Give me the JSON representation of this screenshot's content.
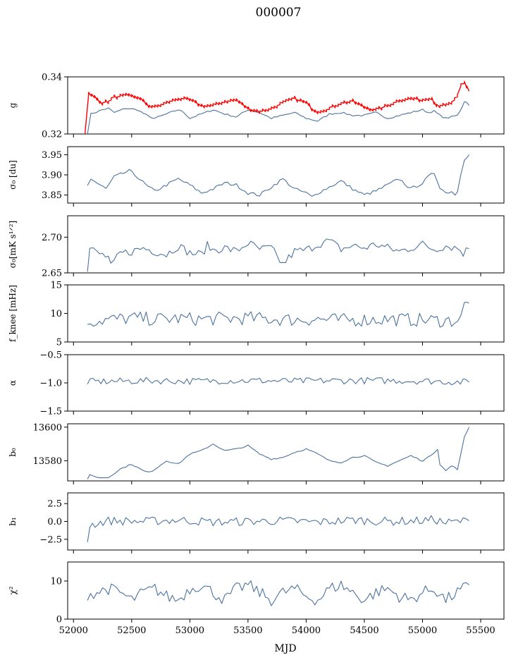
{
  "figure": {
    "suptitle": "000007",
    "xlabel": "MJD"
  },
  "colors": {
    "series": "#4c72a0",
    "highlight": "#ff0000"
  },
  "chart_data": [
    {
      "type": "line",
      "id": "g",
      "ylabel": "g",
      "ylim": [
        0.32,
        0.34
      ],
      "yticks": [
        0.32,
        0.34
      ],
      "ytick_labels": [
        "0.32",
        "0.34"
      ],
      "xlim": [
        51950,
        55700
      ],
      "xticks_shown": false,
      "series": [
        {
          "color": "#4c72a0",
          "desc": "lower curve",
          "x": [
            52120,
            52150,
            52250,
            52300,
            52350,
            52450,
            52550,
            52650,
            52700,
            52800,
            52900,
            52950,
            53000,
            53100,
            53200,
            53300,
            53400,
            53500,
            53600,
            53700,
            53800,
            53900,
            54000,
            54100,
            54200,
            54300,
            54350,
            54400,
            54500,
            54600,
            54700,
            54800,
            54900,
            55000,
            55050,
            55100,
            55150,
            55200,
            55300,
            55340,
            55360,
            55380,
            55400
          ],
          "y": [
            0.32,
            0.327,
            0.3285,
            0.329,
            0.3275,
            0.329,
            0.3285,
            0.326,
            0.3255,
            0.327,
            0.3285,
            0.3275,
            0.3255,
            0.327,
            0.3285,
            0.327,
            0.326,
            0.3285,
            0.3275,
            0.3255,
            0.3265,
            0.3275,
            0.3255,
            0.3245,
            0.327,
            0.3275,
            0.327,
            0.3265,
            0.3265,
            0.3275,
            0.3255,
            0.3265,
            0.3275,
            0.3285,
            0.3275,
            0.328,
            0.3265,
            0.3255,
            0.3265,
            0.3295,
            0.3315,
            0.331,
            0.33
          ]
        },
        {
          "color": "#ff0000",
          "desc": "upper band",
          "x": [
            52100,
            52130,
            52180,
            52250,
            52300,
            52350,
            52450,
            52550,
            52650,
            52700,
            52800,
            52900,
            53000,
            53100,
            53200,
            53300,
            53400,
            53500,
            53600,
            53700,
            53800,
            53900,
            54000,
            54050,
            54100,
            54200,
            54300,
            54400,
            54500,
            54600,
            54700,
            54800,
            54900,
            55000,
            55080,
            55100,
            55120,
            55150,
            55200,
            55250,
            55300,
            55330,
            55360,
            55380,
            55400
          ],
          "y": [
            0.32,
            0.3335,
            0.3325,
            0.3305,
            0.331,
            0.3325,
            0.333,
            0.3325,
            0.3295,
            0.329,
            0.3305,
            0.332,
            0.3315,
            0.3295,
            0.3295,
            0.331,
            0.3315,
            0.3285,
            0.3275,
            0.3285,
            0.3305,
            0.332,
            0.3305,
            0.3285,
            0.3275,
            0.3285,
            0.3305,
            0.331,
            0.329,
            0.328,
            0.3295,
            0.3315,
            0.332,
            0.3315,
            0.3325,
            0.3305,
            0.33,
            0.3295,
            0.3295,
            0.3305,
            0.3325,
            0.3365,
            0.3375,
            0.336,
            0.335
          ]
        }
      ]
    },
    {
      "type": "line",
      "id": "sigma0_du",
      "ylabel": "σ₀ [du]",
      "ylim": [
        3.83,
        3.97
      ],
      "yticks": [
        3.85,
        3.9,
        3.95
      ],
      "ytick_labels": [
        "3.85",
        "3.90",
        "3.95"
      ],
      "xlim": [
        51950,
        55700
      ],
      "xticks_shown": false,
      "series": [
        {
          "color": "#4c72a0",
          "x": [
            52120,
            52150,
            52200,
            52280,
            52350,
            52480,
            52550,
            52640,
            52700,
            52800,
            52900,
            53000,
            53100,
            53200,
            53300,
            53400,
            53500,
            53600,
            53700,
            53800,
            53900,
            54000,
            54050,
            54100,
            54200,
            54300,
            54400,
            54500,
            54600,
            54700,
            54800,
            54900,
            55000,
            55050,
            55100,
            55150,
            55200,
            55250,
            55280,
            55300,
            55330,
            55360,
            55400
          ],
          "y": [
            3.875,
            3.89,
            3.88,
            3.865,
            3.895,
            3.91,
            3.895,
            3.87,
            3.86,
            3.875,
            3.89,
            3.875,
            3.855,
            3.865,
            3.88,
            3.875,
            3.855,
            3.85,
            3.87,
            3.89,
            3.865,
            3.855,
            3.845,
            3.855,
            3.87,
            3.885,
            3.865,
            3.85,
            3.86,
            3.875,
            3.89,
            3.865,
            3.88,
            3.895,
            3.905,
            3.87,
            3.855,
            3.86,
            3.85,
            3.86,
            3.905,
            3.94,
            3.95
          ]
        }
      ]
    },
    {
      "type": "line",
      "id": "sigma0_mK",
      "ylabel": "σ₀[mK s¹ᐟ²]",
      "ylim": [
        2.65,
        2.73
      ],
      "yticks": [
        2.65,
        2.7
      ],
      "ytick_labels": [
        "2.65",
        "2.70"
      ],
      "xlim": [
        51950,
        55700
      ],
      "xticks_shown": false,
      "series": [
        {
          "color": "#4c72a0",
          "x": [
            52120,
            52140,
            52200,
            52250,
            52300,
            52320,
            52400,
            52500,
            52600,
            52700,
            52800,
            52900,
            53000,
            53100,
            53150,
            53200,
            53300,
            53400,
            53500,
            53600,
            53700,
            53750,
            53800,
            53900,
            54000,
            54100,
            54200,
            54300,
            54400,
            54500,
            54600,
            54700,
            54800,
            54900,
            55000,
            55100,
            55200,
            55300,
            55350,
            55400
          ],
          "y": [
            2.65,
            2.685,
            2.678,
            2.675,
            2.672,
            2.658,
            2.677,
            2.68,
            2.685,
            2.68,
            2.676,
            2.688,
            2.678,
            2.676,
            2.688,
            2.682,
            2.685,
            2.68,
            2.692,
            2.683,
            2.685,
            2.672,
            2.662,
            2.68,
            2.682,
            2.69,
            2.695,
            2.683,
            2.688,
            2.685,
            2.69,
            2.685,
            2.68,
            2.685,
            2.69,
            2.683,
            2.688,
            2.685,
            2.678,
            2.684
          ]
        }
      ]
    },
    {
      "type": "line",
      "id": "fknee",
      "ylabel": "f_knee [mHz]",
      "ylim": [
        5,
        15
      ],
      "yticks": [
        5,
        10,
        15
      ],
      "ytick_labels": [
        "5",
        "10",
        "15"
      ],
      "xlim": [
        51950,
        55700
      ],
      "xticks_shown": false,
      "series": [
        {
          "color": "#4c72a0",
          "x": [
            52120,
            52300,
            52500,
            52700,
            52900,
            53100,
            53300,
            53500,
            53700,
            53900,
            54100,
            54300,
            54500,
            54700,
            54900,
            55100,
            55250,
            55330,
            55360,
            55400
          ],
          "y": [
            8.6,
            8.9,
            9.2,
            9.0,
            9.1,
            9.0,
            9.1,
            9.2,
            9.0,
            8.9,
            9.0,
            8.8,
            8.9,
            9.0,
            8.9,
            8.8,
            8.7,
            9.0,
            11.5,
            11.8
          ]
        }
      ]
    },
    {
      "type": "line",
      "id": "alpha",
      "ylabel": "α",
      "ylim": [
        -1.5,
        -0.5
      ],
      "yticks": [
        -1.5,
        -1.0,
        -0.5
      ],
      "ytick_labels": [
        "−1.5",
        "−1.0",
        "−0.5"
      ],
      "xlim": [
        51950,
        55700
      ],
      "xticks_shown": false,
      "series": [
        {
          "color": "#4c72a0",
          "x": [
            52120,
            52400,
            52700,
            53000,
            53300,
            53600,
            53900,
            54200,
            54500,
            54800,
            55100,
            55400
          ],
          "y": [
            -0.98,
            -0.97,
            -0.96,
            -0.97,
            -0.96,
            -0.96,
            -0.97,
            -0.96,
            -0.96,
            -0.96,
            -0.97,
            -0.99
          ]
        }
      ]
    },
    {
      "type": "line",
      "id": "b0",
      "ylabel": "b₀",
      "ylim": [
        13568,
        13602
      ],
      "yticks": [
        13580,
        13600
      ],
      "ytick_labels": [
        "13580",
        "13600"
      ],
      "xlim": [
        51950,
        55700
      ],
      "xticks_shown": false,
      "series": [
        {
          "color": "#4c72a0",
          "x": [
            52120,
            52140,
            52200,
            52300,
            52400,
            52500,
            52600,
            52650,
            52700,
            52800,
            52900,
            53000,
            53100,
            53200,
            53300,
            53400,
            53500,
            53600,
            53700,
            53800,
            53900,
            54000,
            54100,
            54200,
            54300,
            54400,
            54500,
            54600,
            54700,
            54800,
            54900,
            55000,
            55050,
            55100,
            55130,
            55150,
            55200,
            55250,
            55300,
            55330,
            55360,
            55400
          ],
          "y": [
            13569,
            13572,
            13570,
            13570,
            13575,
            13578,
            13574,
            13573,
            13575,
            13580,
            13578,
            13584,
            13586,
            13590,
            13586,
            13587,
            13589,
            13584,
            13581,
            13582,
            13585,
            13587,
            13584,
            13580,
            13579,
            13582,
            13583,
            13579,
            13577,
            13580,
            13583,
            13580,
            13582,
            13585,
            13587,
            13578,
            13574,
            13577,
            13575,
            13584,
            13594,
            13600
          ]
        }
      ]
    },
    {
      "type": "line",
      "id": "b1",
      "ylabel": "b₁",
      "ylim": [
        -4,
        4
      ],
      "yticks": [
        -2.5,
        0,
        2.5
      ],
      "ytick_labels": [
        "−2.5",
        "0.0",
        "2.5"
      ],
      "xlim": [
        51950,
        55700
      ],
      "xticks_shown": false,
      "series": [
        {
          "color": "#4c72a0",
          "x": [
            52120,
            52140,
            52300,
            52600,
            52900,
            53200,
            53500,
            53800,
            54100,
            54400,
            54700,
            55000,
            55100,
            55200,
            55300,
            55400
          ],
          "y": [
            -2.7,
            -0.5,
            0.1,
            0.0,
            0.2,
            -0.1,
            0.0,
            0.1,
            -0.1,
            0.2,
            0.0,
            0.1,
            0.3,
            -0.2,
            0.0,
            0.1
          ]
        }
      ]
    },
    {
      "type": "line",
      "id": "chi2",
      "ylabel": "χ²",
      "ylim": [
        0,
        15
      ],
      "yticks": [
        0,
        10
      ],
      "ytick_labels": [
        "0",
        "10"
      ],
      "xlim": [
        51950,
        55700
      ],
      "xticks_shown": true,
      "xticks": [
        52000,
        52500,
        53000,
        53500,
        54000,
        54500,
        55000,
        55500
      ],
      "xtick_labels": [
        "52000",
        "52500",
        "53000",
        "53500",
        "54000",
        "54500",
        "55000",
        "55500"
      ],
      "series": [
        {
          "color": "#4c72a0",
          "x": [
            52120,
            52200,
            52300,
            52400,
            52500,
            52600,
            52700,
            52800,
            52900,
            53000,
            53100,
            53200,
            53300,
            53400,
            53500,
            53600,
            53700,
            53800,
            53900,
            54000,
            54100,
            54200,
            54300,
            54400,
            54500,
            54600,
            54700,
            54800,
            54900,
            55000,
            55100,
            55200,
            55300,
            55400
          ],
          "y": [
            6.5,
            7,
            8,
            7,
            5,
            7,
            8,
            6,
            5,
            8,
            9,
            7,
            5,
            8,
            9,
            7,
            5,
            7,
            8,
            6,
            5,
            8,
            9,
            7,
            5,
            7,
            8,
            6,
            5,
            7,
            8,
            5,
            7,
            9
          ]
        }
      ]
    }
  ]
}
